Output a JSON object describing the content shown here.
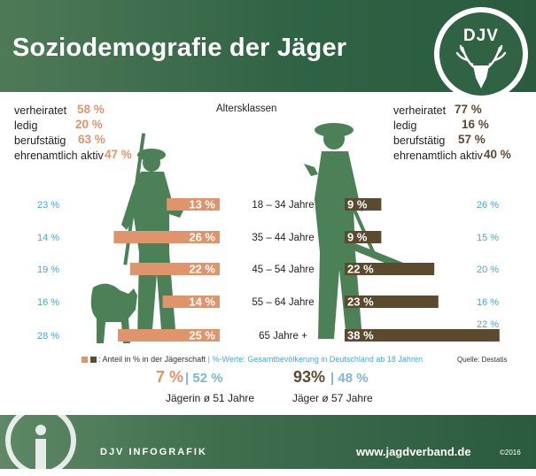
{
  "header": {
    "title": "Soziodemografie der Jäger"
  },
  "logo": {
    "text": "DJV"
  },
  "female_stats": [
    {
      "label": "verheiratet",
      "value": "58 %"
    },
    {
      "label": "ledig",
      "value": "20 %"
    },
    {
      "label": "berufstätig",
      "value": "63 %"
    },
    {
      "label": "ehrenamtlich aktiv",
      "value": "47 %"
    }
  ],
  "male_stats": [
    {
      "label": "verheiratet",
      "value": "77 %"
    },
    {
      "label": "ledig",
      "value": "16 %"
    },
    {
      "label": "berufstätig",
      "value": "57 %"
    },
    {
      "label": "ehrenamtlich aktiv",
      "value": "40 %"
    }
  ],
  "legend": {
    "part1": ": Anteil in % in der Jägerschaft",
    "sep": "|",
    "part2": "%-Werte: Gesamtbevölkerung in Deutschland ab 18 Jahren",
    "source": "Quelle: Destatis"
  },
  "summary": {
    "female_share": "7 %",
    "female_population": "52 %",
    "female_avg": "Jägerin ø 51 Jahre",
    "male_share": "93%",
    "male_population": "48 %",
    "male_avg": "Jäger ø 57 Jahre",
    "separator": "|"
  },
  "footer": {
    "label": "DJV INFOGRAFIK",
    "url": "www.jagdverband.de",
    "copyright": "©2016"
  },
  "colors": {
    "female": "#e0946c",
    "male": "#5c4a2e",
    "population": "#4aa6d6",
    "green": "#2f6344"
  },
  "chart_data": {
    "type": "bar",
    "title": "Altersklassen",
    "categories": [
      "18 – 34 Jahre",
      "35 – 44 Jahre",
      "45 – 54 Jahre",
      "55 – 64 Jahre",
      "65 Jahre +"
    ],
    "series": [
      {
        "name": "Jägerinnen",
        "values": [
          13,
          26,
          22,
          14,
          25
        ],
        "labels": [
          "13 %",
          "26 %",
          "22 %",
          "14 %",
          "25 %"
        ]
      },
      {
        "name": "Jäger",
        "values": [
          9,
          9,
          22,
          23,
          38
        ],
        "labels": [
          "9 %",
          "9 %",
          "22 %",
          "23 %",
          "38 %"
        ]
      }
    ],
    "population_female": {
      "values": [
        23,
        14,
        19,
        16,
        28
      ],
      "labels": [
        "23 %",
        "14 %",
        "19 %",
        "16 %",
        "28 %"
      ]
    },
    "population_male": {
      "values": [
        26,
        15,
        20,
        16,
        22
      ],
      "labels": [
        "26 %",
        "15 %",
        "20 %",
        "16 %",
        "22 %"
      ]
    },
    "xlim": [
      0,
      40
    ]
  }
}
